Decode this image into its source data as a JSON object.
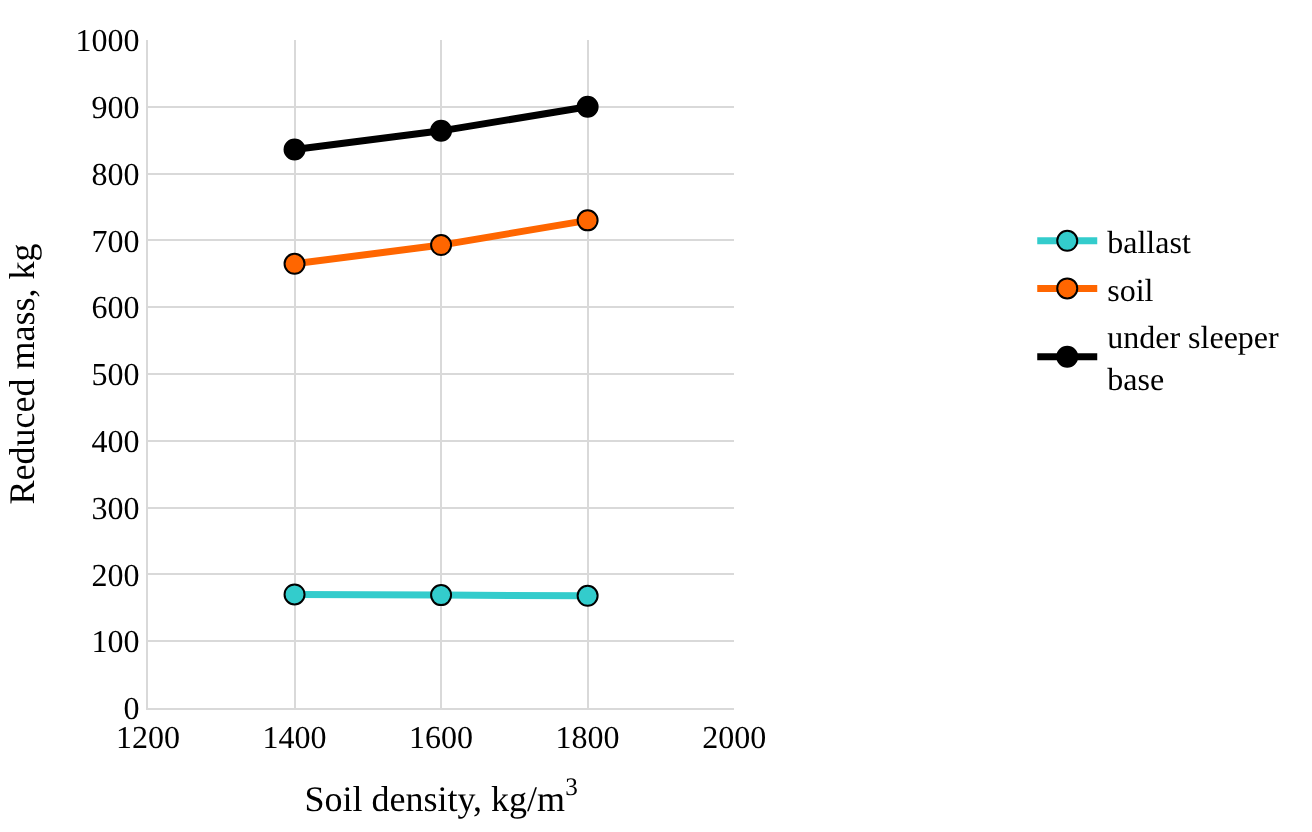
{
  "chart_data": {
    "type": "line",
    "xlabel": "Soil density, kg/m$^{3}$",
    "ylabel": "Reduced mass, kg",
    "x": [
      1400,
      1600,
      1800
    ],
    "series": [
      {
        "name": "ballast",
        "color": "#33cccc",
        "values": [
          170,
          169,
          168
        ]
      },
      {
        "name": "soil",
        "color": "#ff6600",
        "values": [
          665,
          693,
          730
        ]
      },
      {
        "name": "under sleeper base",
        "color": "#000000",
        "values": [
          836,
          864,
          900
        ]
      }
    ],
    "xlim": [
      1200,
      2000
    ],
    "xticks": [
      1200,
      1400,
      1600,
      1800,
      2000
    ],
    "ylim": [
      0,
      1000
    ],
    "yticks": [
      0,
      100,
      200,
      300,
      400,
      500,
      600,
      700,
      800,
      900,
      1000
    ],
    "grid": true,
    "legend": "right",
    "marker": "circle",
    "line_style": "solid"
  }
}
